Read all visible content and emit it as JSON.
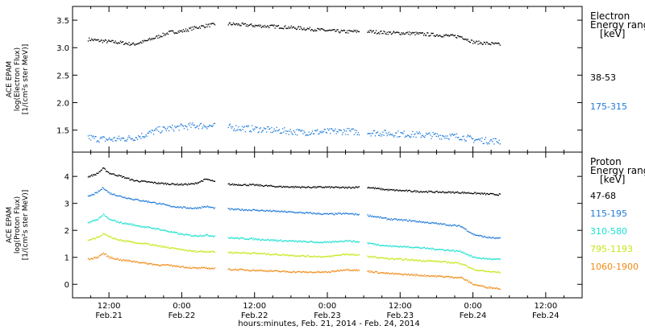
{
  "footer": {
    "xlabel": "hours:minutes, Feb. 21, 2014 - Feb. 24, 2014"
  },
  "x_ticks": [
    {
      "time": "12:00",
      "date": "Feb.21"
    },
    {
      "time": "0:00",
      "date": "Feb.22"
    },
    {
      "time": "12:00",
      "date": "Feb.22"
    },
    {
      "time": "0:00",
      "date": "Feb.23"
    },
    {
      "time": "12:00",
      "date": "Feb.23"
    },
    {
      "time": "0:00",
      "date": "Feb.24"
    },
    {
      "time": "12:00",
      "date": "Feb.24"
    }
  ],
  "chart_data": [
    {
      "type": "scatter",
      "ylabel": [
        "ACE EPAM",
        "log(Electron Flux)",
        "[1/(cm²s ster MeV)]"
      ],
      "ylim": [
        1.1,
        3.75
      ],
      "yticks": [
        1.5,
        2.0,
        2.5,
        3.0,
        3.5
      ],
      "ytick_labels": [
        "1.5",
        "2.0",
        "2.5",
        "3.0",
        "3.5"
      ],
      "legend_title": [
        "Electron",
        "Energy ranges",
        "[keV]"
      ],
      "series": [
        {
          "name": "38-53",
          "color": "#000000",
          "points": [
            [
              2,
              3.16
            ],
            [
              4,
              3.13
            ],
            [
              6,
              3.11
            ],
            [
              8,
              3.09
            ],
            [
              10,
              3.06
            ],
            [
              12,
              3.12
            ],
            [
              14,
              3.2
            ],
            [
              16,
              3.28
            ],
            [
              18,
              3.3
            ],
            [
              20,
              3.36
            ],
            [
              22,
              3.4
            ],
            [
              24,
              3.43
            ],
            [
              26,
              3.43
            ],
            [
              30,
              3.4
            ],
            [
              34,
              3.38
            ],
            [
              38,
              3.35
            ],
            [
              42,
              3.31
            ],
            [
              45,
              3.29
            ],
            [
              48,
              3.3
            ],
            [
              52,
              3.27
            ],
            [
              56,
              3.26
            ],
            [
              60,
              3.23
            ],
            [
              64,
              3.2
            ],
            [
              66,
              3.1
            ],
            [
              68,
              3.08
            ],
            [
              70,
              3.06
            ],
            [
              72,
              3.05
            ]
          ]
        },
        {
          "name": "175-315",
          "color": "#1f7ad8",
          "points": [
            [
              2,
              1.38
            ],
            [
              4,
              1.34
            ],
            [
              6,
              1.33
            ],
            [
              8,
              1.34
            ],
            [
              10,
              1.36
            ],
            [
              12,
              1.42
            ],
            [
              14,
              1.5
            ],
            [
              16,
              1.53
            ],
            [
              18,
              1.56
            ],
            [
              20,
              1.58
            ],
            [
              22,
              1.58
            ],
            [
              26,
              1.55
            ],
            [
              30,
              1.52
            ],
            [
              34,
              1.49
            ],
            [
              38,
              1.46
            ],
            [
              42,
              1.47
            ],
            [
              45,
              1.48
            ],
            [
              48,
              1.46
            ],
            [
              52,
              1.44
            ],
            [
              56,
              1.42
            ],
            [
              60,
              1.4
            ],
            [
              64,
              1.38
            ],
            [
              66,
              1.33
            ],
            [
              68,
              1.31
            ],
            [
              70,
              1.3
            ],
            [
              72,
              1.29
            ]
          ]
        }
      ]
    },
    {
      "type": "scatter",
      "ylabel": [
        "ACE EPAM",
        "log(Proton Flux)",
        "[1/(cm²s ster MeV)]"
      ],
      "ylim": [
        -0.5,
        4.9
      ],
      "yticks": [
        0,
        1,
        2,
        3,
        4
      ],
      "ytick_labels": [
        "0",
        "1",
        "2",
        "3",
        "4"
      ],
      "legend_title": [
        "Proton",
        "Energy ranges",
        "[keV]"
      ],
      "series": [
        {
          "name": "47-68",
          "color": "#000000",
          "points": [
            [
              2,
              3.95
            ],
            [
              4,
              4.1
            ],
            [
              5,
              4.3
            ],
            [
              6,
              4.12
            ],
            [
              8,
              4.0
            ],
            [
              10,
              3.85
            ],
            [
              12,
              3.8
            ],
            [
              14,
              3.75
            ],
            [
              16,
              3.72
            ],
            [
              18,
              3.7
            ],
            [
              20,
              3.72
            ],
            [
              22,
              3.9
            ],
            [
              24,
              3.75
            ],
            [
              26,
              3.7
            ],
            [
              30,
              3.68
            ],
            [
              34,
              3.62
            ],
            [
              38,
              3.6
            ],
            [
              42,
              3.6
            ],
            [
              45,
              3.58
            ],
            [
              48,
              3.62
            ],
            [
              50,
              3.55
            ],
            [
              52,
              3.5
            ],
            [
              56,
              3.45
            ],
            [
              60,
              3.42
            ],
            [
              64,
              3.4
            ],
            [
              66,
              3.38
            ],
            [
              68,
              3.35
            ],
            [
              70,
              3.33
            ],
            [
              72,
              3.32
            ]
          ]
        },
        {
          "name": "115-195",
          "color": "#1f7ad8",
          "points": [
            [
              2,
              3.2
            ],
            [
              4,
              3.4
            ],
            [
              5,
              3.58
            ],
            [
              6,
              3.38
            ],
            [
              8,
              3.25
            ],
            [
              10,
              3.15
            ],
            [
              12,
              3.08
            ],
            [
              14,
              3.0
            ],
            [
              16,
              2.9
            ],
            [
              18,
              2.85
            ],
            [
              20,
              2.82
            ],
            [
              22,
              2.88
            ],
            [
              24,
              2.8
            ],
            [
              26,
              2.78
            ],
            [
              30,
              2.75
            ],
            [
              34,
              2.7
            ],
            [
              38,
              2.65
            ],
            [
              42,
              2.6
            ],
            [
              45,
              2.62
            ],
            [
              48,
              2.58
            ],
            [
              50,
              2.5
            ],
            [
              52,
              2.42
            ],
            [
              56,
              2.35
            ],
            [
              60,
              2.25
            ],
            [
              64,
              2.15
            ],
            [
              66,
              1.85
            ],
            [
              68,
              1.75
            ],
            [
              70,
              1.7
            ],
            [
              72,
              1.7
            ]
          ]
        },
        {
          "name": "310-580",
          "color": "#1ae0d0",
          "points": [
            [
              2,
              2.25
            ],
            [
              4,
              2.4
            ],
            [
              5,
              2.58
            ],
            [
              6,
              2.4
            ],
            [
              8,
              2.28
            ],
            [
              10,
              2.2
            ],
            [
              12,
              2.12
            ],
            [
              14,
              2.05
            ],
            [
              16,
              1.95
            ],
            [
              18,
              1.85
            ],
            [
              20,
              1.8
            ],
            [
              22,
              1.82
            ],
            [
              24,
              1.78
            ],
            [
              26,
              1.72
            ],
            [
              30,
              1.68
            ],
            [
              34,
              1.62
            ],
            [
              38,
              1.58
            ],
            [
              42,
              1.55
            ],
            [
              45,
              1.62
            ],
            [
              48,
              1.55
            ],
            [
              50,
              1.48
            ],
            [
              52,
              1.42
            ],
            [
              56,
              1.38
            ],
            [
              60,
              1.3
            ],
            [
              64,
              1.22
            ],
            [
              66,
              1.0
            ],
            [
              68,
              0.95
            ],
            [
              70,
              0.92
            ],
            [
              72,
              0.9
            ]
          ]
        },
        {
          "name": "795-1193",
          "color": "#c8e614",
          "points": [
            [
              2,
              1.6
            ],
            [
              4,
              1.72
            ],
            [
              5,
              1.88
            ],
            [
              6,
              1.75
            ],
            [
              8,
              1.62
            ],
            [
              10,
              1.55
            ],
            [
              12,
              1.5
            ],
            [
              14,
              1.42
            ],
            [
              16,
              1.35
            ],
            [
              18,
              1.28
            ],
            [
              20,
              1.22
            ],
            [
              22,
              1.22
            ],
            [
              24,
              1.2
            ],
            [
              26,
              1.18
            ],
            [
              30,
              1.15
            ],
            [
              34,
              1.1
            ],
            [
              38,
              1.05
            ],
            [
              42,
              1.02
            ],
            [
              45,
              1.12
            ],
            [
              48,
              1.05
            ],
            [
              50,
              1.0
            ],
            [
              52,
              0.95
            ],
            [
              56,
              0.9
            ],
            [
              60,
              0.85
            ],
            [
              64,
              0.78
            ],
            [
              66,
              0.55
            ],
            [
              68,
              0.48
            ],
            [
              70,
              0.45
            ],
            [
              72,
              0.42
            ]
          ]
        },
        {
          "name": "1060-1900",
          "color": "#f08a16",
          "points": [
            [
              2,
              0.9
            ],
            [
              4,
              1.0
            ],
            [
              5,
              1.15
            ],
            [
              6,
              1.0
            ],
            [
              8,
              0.9
            ],
            [
              10,
              0.85
            ],
            [
              12,
              0.78
            ],
            [
              14,
              0.72
            ],
            [
              16,
              0.7
            ],
            [
              18,
              0.65
            ],
            [
              20,
              0.6
            ],
            [
              22,
              0.6
            ],
            [
              24,
              0.58
            ],
            [
              26,
              0.55
            ],
            [
              30,
              0.52
            ],
            [
              34,
              0.48
            ],
            [
              38,
              0.45
            ],
            [
              42,
              0.45
            ],
            [
              45,
              0.55
            ],
            [
              48,
              0.5
            ],
            [
              50,
              0.45
            ],
            [
              52,
              0.4
            ],
            [
              56,
              0.35
            ],
            [
              60,
              0.3
            ],
            [
              64,
              0.25
            ],
            [
              66,
              0.0
            ],
            [
              68,
              -0.1
            ],
            [
              70,
              -0.15
            ],
            [
              72,
              -0.2
            ]
          ]
        }
      ]
    }
  ],
  "x_axis": {
    "start": "2014-02-21 06:00",
    "end": "2014-02-24 18:00",
    "unit": "hours",
    "xlim": [
      0,
      84
    ],
    "tick_hours": [
      6,
      18,
      30,
      42,
      54,
      66,
      78
    ]
  }
}
